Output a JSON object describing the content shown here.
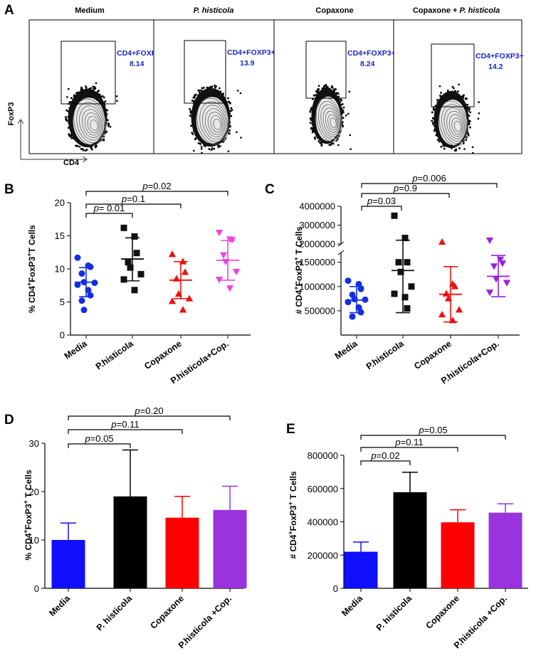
{
  "panel_letters": {
    "a": "A",
    "b": "B",
    "c": "C",
    "d": "D",
    "e": "E"
  },
  "flow": {
    "x_axis": "CD4",
    "y_axis": "FoxP3",
    "gate_name": "CD4+FOXP3+",
    "panels": [
      {
        "title": "Medium",
        "italic": false,
        "value": "8.14"
      },
      {
        "title": "P. histicola",
        "italic": true,
        "value": "13.9"
      },
      {
        "title": "Copaxone",
        "italic": false,
        "value": "8.24"
      },
      {
        "title": "Copaxone + P. histicola",
        "title_plain": "Copaxone + ",
        "title_italic": "P. histicola",
        "italic": false,
        "value": "14.2"
      }
    ]
  },
  "chart_data": [
    {
      "panel": "B",
      "type": "scatter",
      "categories": [
        "Media",
        "P.histicola",
        "Copaxone",
        "P.histicola+Cop."
      ],
      "colors": [
        "#1230e0",
        "#111111",
        "#ee1111",
        "#ee44dd"
      ],
      "markers": [
        "circle",
        "square",
        "triangle-up",
        "triangle-down"
      ],
      "ylabel": "% CD4+FoxP3+T Cells",
      "ylim": [
        0,
        20
      ],
      "yticks": [
        "0",
        "5",
        "10",
        "15",
        "20"
      ],
      "points": [
        [
          11.7,
          10.5,
          10.3,
          9.3,
          8.0,
          7.9,
          7.6,
          6.8,
          6.0,
          5.2,
          3.8
        ],
        [
          16.2,
          14.9,
          12.4,
          11.0,
          10.2,
          9.2,
          8.4,
          6.8
        ],
        [
          12.2,
          11.1,
          9.5,
          8.5,
          6.2,
          5.5,
          5.1,
          3.8
        ],
        [
          15.5,
          14.5,
          14.4,
          12.1,
          11.1,
          9.6,
          8.4,
          7.1
        ]
      ],
      "mean": [
        8.0,
        11.5,
        8.3,
        11.3
      ],
      "sd_low": [
        5.8,
        8.2,
        5.5,
        8.3
      ],
      "sd_high": [
        10.2,
        14.7,
        11.1,
        14.3
      ],
      "comparisons": [
        {
          "from": "Media",
          "to": "P.histicola",
          "p_label": "p",
          "p_value": "= 0.01"
        },
        {
          "from": "Media",
          "to": "Copaxone",
          "p_label": "p",
          "p_value": "=0.1"
        },
        {
          "from": "Media",
          "to": "P.histicola+Cop.",
          "p_label": "p",
          "p_value": "=0.02"
        }
      ]
    },
    {
      "panel": "C",
      "type": "scatter",
      "categories": [
        "Media",
        "P.histicola",
        "Copaxone",
        "P.histicola+Cop."
      ],
      "colors": [
        "#1230e0",
        "#111111",
        "#ee1111",
        "#9922dd"
      ],
      "markers": [
        "circle",
        "square",
        "triangle-up",
        "triangle-down"
      ],
      "ylabel": "# CD4+FoxP3+ T Cells",
      "axis_break": {
        "lower": [
          0,
          2000000
        ],
        "upper": [
          2000000,
          4000000
        ]
      },
      "yticks": [
        "500000",
        "1000000",
        "1500000",
        "2000000",
        "3000000",
        "4000000"
      ],
      "points": [
        [
          1120000,
          1050000,
          950000,
          830000,
          740000,
          730000,
          680000,
          570000,
          470000,
          380000
        ],
        [
          3500000,
          2000000,
          1500000,
          1500000,
          1300000,
          1000000,
          850000,
          780000,
          550000
        ],
        [
          2100000,
          1050000,
          1000000,
          850000,
          750000,
          520000,
          420000,
          300000
        ],
        [
          2200000,
          1560000,
          1480000,
          1420000,
          1160000,
          1080000,
          880000
        ]
      ],
      "mean": [
        720000,
        1330000,
        840000,
        1210000
      ],
      "sd_low": [
        460000,
        460000,
        270000,
        790000
      ],
      "sd_high": [
        1000000,
        2200000,
        1410000,
        1640000
      ],
      "comparisons": [
        {
          "from": "Media",
          "to": "P.histicola",
          "p_label": "p",
          "p_value": "=0.03"
        },
        {
          "from": "Media",
          "to": "Copaxone",
          "p_label": "p",
          "p_value": "=0.9"
        },
        {
          "from": "Media",
          "to": "P.histicola+Cop.",
          "p_label": "p",
          "p_value": "=0.006"
        }
      ]
    },
    {
      "panel": "D",
      "type": "bar",
      "categories": [
        "Media",
        "P. histicola",
        "Copaxone",
        "P.histicola +Cop."
      ],
      "colors": [
        "#1010ff",
        "#000000",
        "#ff0000",
        "#9933dd"
      ],
      "ylabel": "% CD4+FoxP3+ T Cells",
      "ylim": [
        0,
        30
      ],
      "yticks": [
        "0",
        "10",
        "20",
        "30"
      ],
      "values": [
        10.0,
        19.0,
        14.6,
        16.2
      ],
      "errors": [
        3.5,
        9.6,
        4.4,
        4.9
      ],
      "comparisons": [
        {
          "from": "Media",
          "to": "P. histicola",
          "p_label": "p",
          "p_value": "=0.05"
        },
        {
          "from": "Media",
          "to": "Copaxone",
          "p_label": "p",
          "p_value": "=0.11"
        },
        {
          "from": "Media",
          "to": "P.histicola +Cop.",
          "p_label": "p",
          "p_value": "=0.20"
        }
      ]
    },
    {
      "panel": "E",
      "type": "bar",
      "categories": [
        "Media",
        "P. histicola",
        "Copaxone",
        "P.histicola +Cop."
      ],
      "colors": [
        "#1010ff",
        "#000000",
        "#ff0000",
        "#9933dd"
      ],
      "ylabel": "# CD4+FoxP3+ T Cells",
      "ylim": [
        0,
        800000
      ],
      "yticks": [
        "0",
        "200000",
        "400000",
        "600000",
        "800000"
      ],
      "values": [
        220000,
        578000,
        397000,
        455000
      ],
      "errors": [
        58000,
        120000,
        75000,
        53000
      ],
      "comparisons": [
        {
          "from": "Media",
          "to": "P. histicola",
          "p_label": "p",
          "p_value": "=0.02"
        },
        {
          "from": "Media",
          "to": "Copaxone",
          "p_label": "p",
          "p_value": "=0.11"
        },
        {
          "from": "Media",
          "to": "P.histicola +Cop.",
          "p_label": "p",
          "p_value": "=0.05"
        }
      ]
    }
  ]
}
